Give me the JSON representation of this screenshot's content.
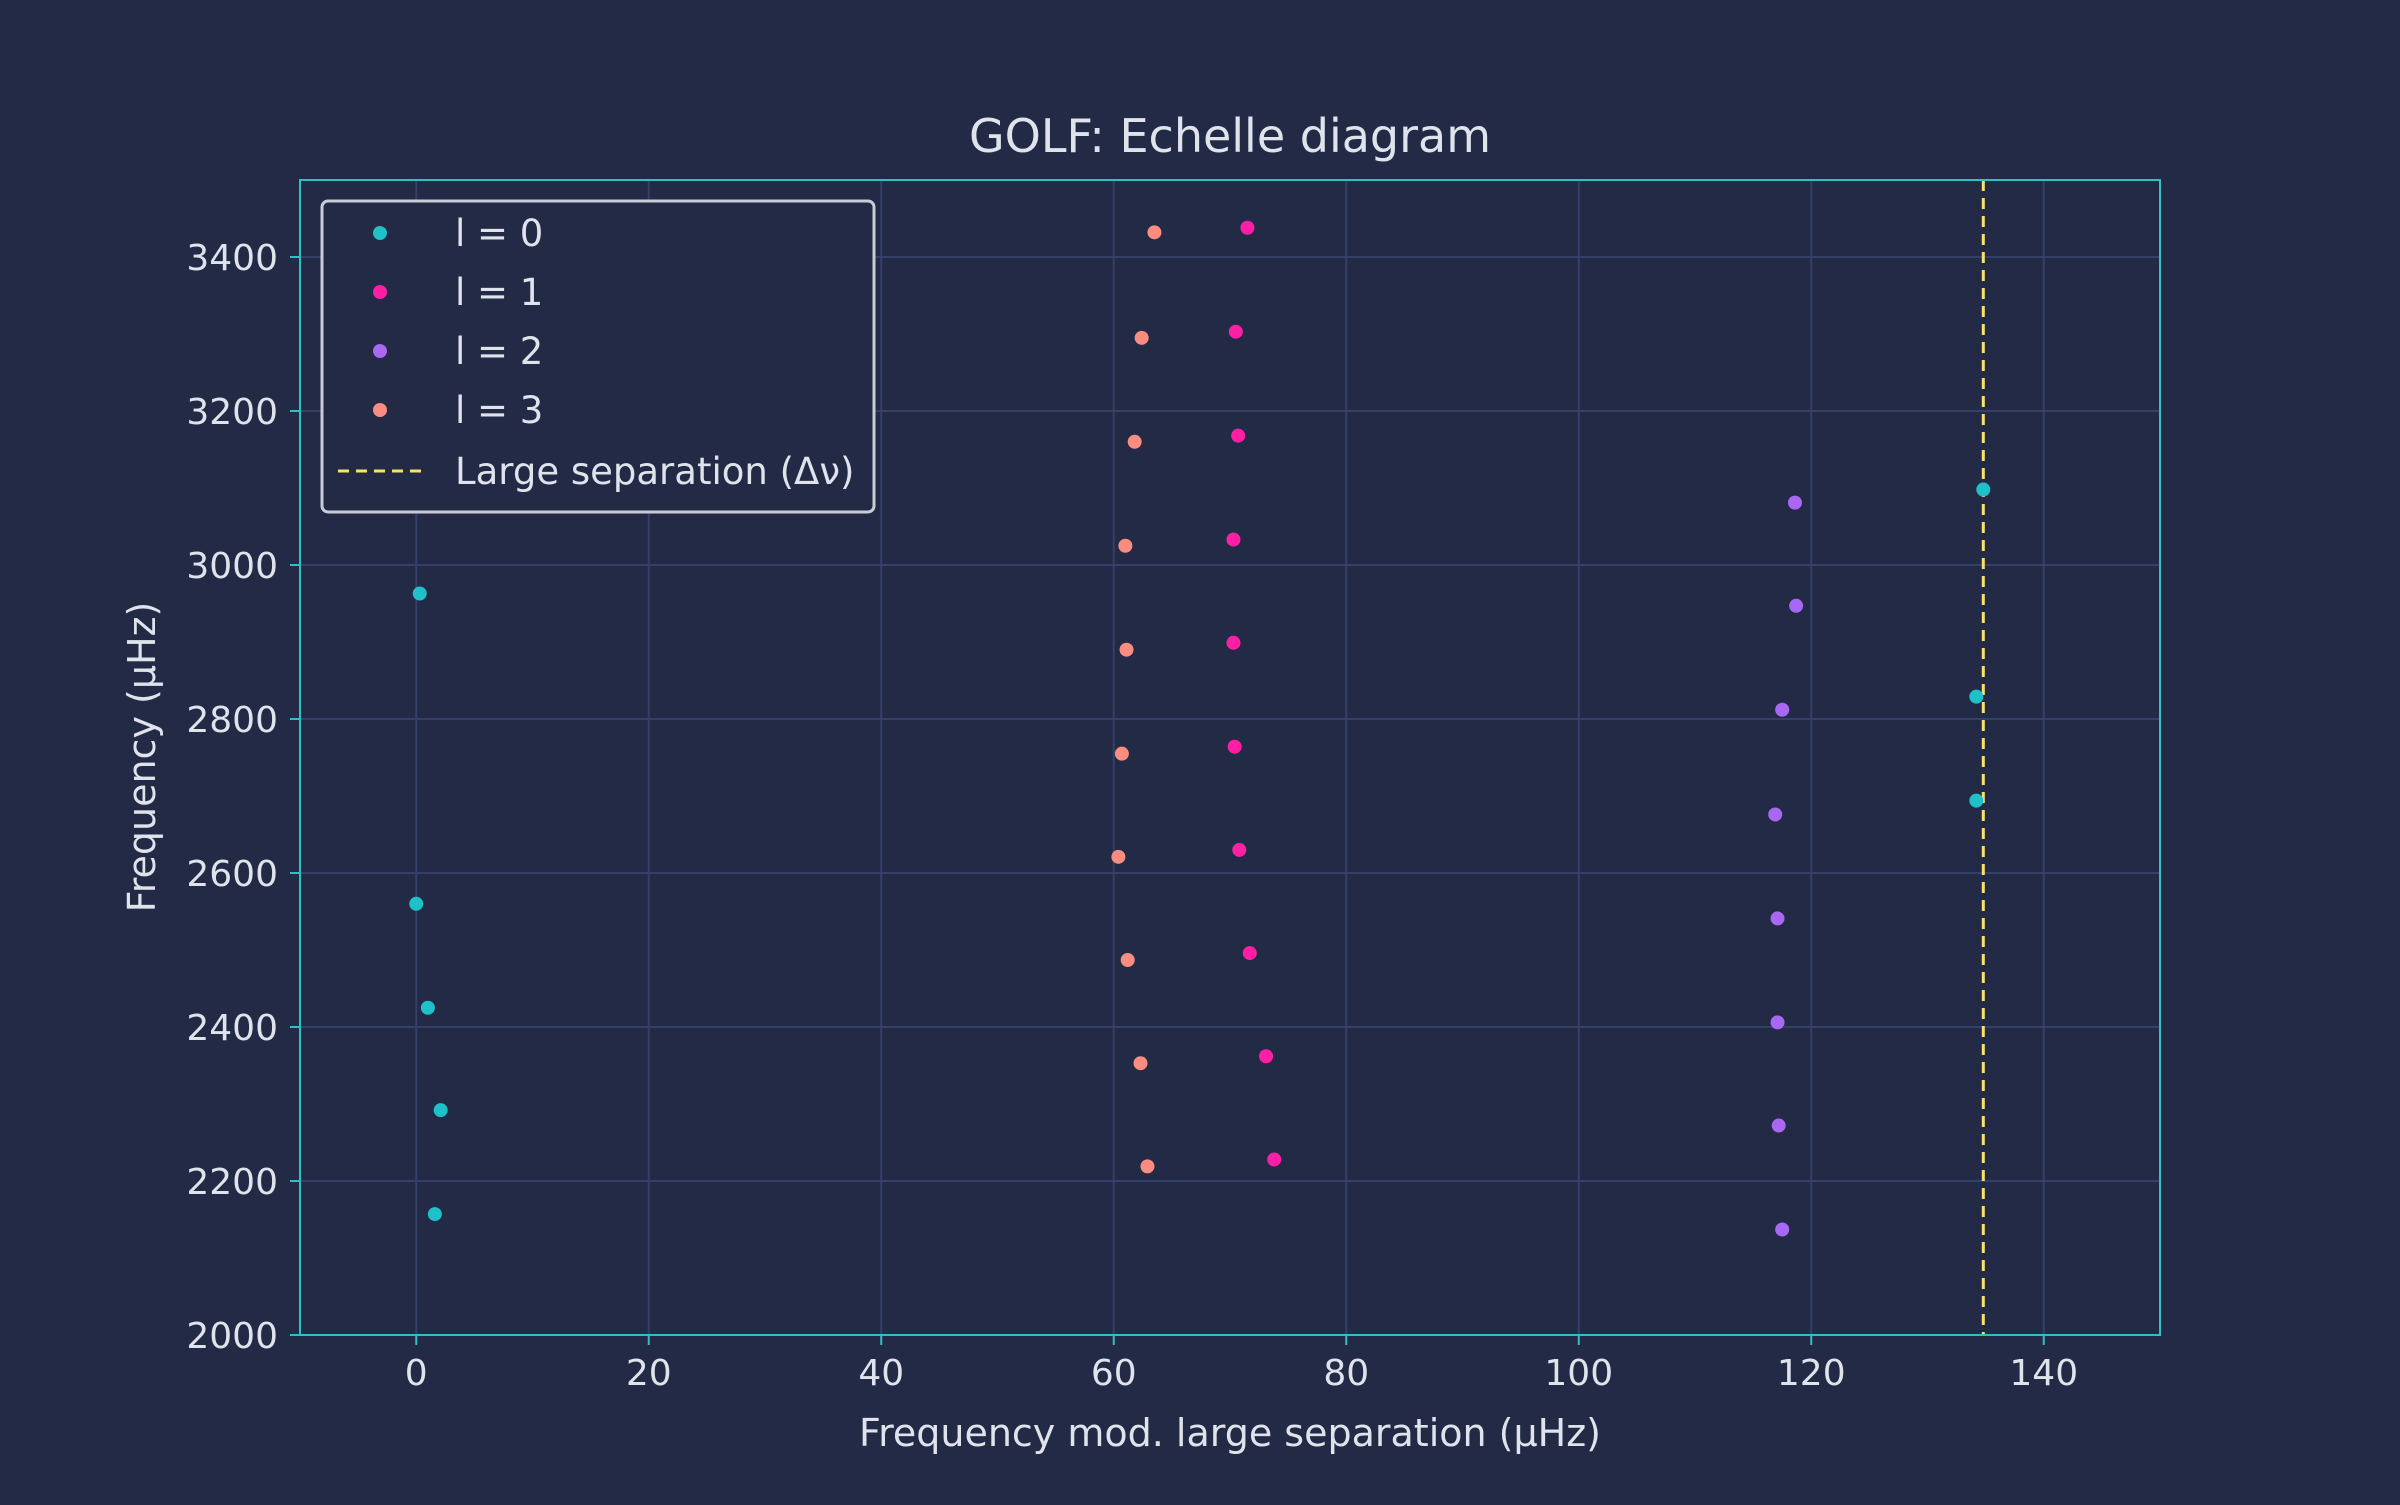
{
  "chart_data": {
    "type": "scatter",
    "title": "GOLF: Echelle diagram",
    "xlabel": "Frequency mod. large separation (μHz)",
    "ylabel": "Frequency (μHz)",
    "xlim": [
      -10,
      150
    ],
    "ylim": [
      2000,
      3500
    ],
    "xticks": [
      0,
      20,
      40,
      60,
      80,
      100,
      120,
      140
    ],
    "yticks": [
      2000,
      2200,
      2400,
      2600,
      2800,
      3000,
      3200,
      3400
    ],
    "grid": true,
    "legend_position": "top-left",
    "large_separation": 134.8,
    "series": [
      {
        "name": "l = 0",
        "color": "#1fc0c8",
        "points": [
          [
            1.6,
            2157
          ],
          [
            2.1,
            2292
          ],
          [
            1.0,
            2425
          ],
          [
            0.0,
            2560
          ],
          [
            134.2,
            2694
          ],
          [
            134.2,
            2829
          ],
          [
            0.3,
            2963
          ],
          [
            134.8,
            3098
          ]
        ]
      },
      {
        "name": "l = 1",
        "color": "#ff1fa4",
        "points": [
          [
            73.8,
            2228
          ],
          [
            73.1,
            2362
          ],
          [
            71.7,
            2496
          ],
          [
            70.8,
            2630
          ],
          [
            70.4,
            2764
          ],
          [
            70.3,
            2899
          ],
          [
            70.3,
            3033
          ],
          [
            70.7,
            3168
          ],
          [
            70.5,
            3303
          ],
          [
            71.5,
            3438
          ]
        ]
      },
      {
        "name": "l = 2",
        "color": "#a868f4",
        "points": [
          [
            117.5,
            2137
          ],
          [
            117.2,
            2272
          ],
          [
            117.1,
            2406
          ],
          [
            117.1,
            2541
          ],
          [
            116.9,
            2676
          ],
          [
            117.5,
            2812
          ],
          [
            118.7,
            2947
          ],
          [
            118.6,
            3081
          ]
        ]
      },
      {
        "name": "l = 3",
        "color": "#fa8c80",
        "points": [
          [
            62.9,
            2219
          ],
          [
            62.3,
            2353
          ],
          [
            61.2,
            2487
          ],
          [
            60.4,
            2621
          ],
          [
            60.7,
            2755
          ],
          [
            61.1,
            2890
          ],
          [
            61.0,
            3025
          ],
          [
            61.8,
            3160
          ],
          [
            62.4,
            3295
          ],
          [
            63.5,
            3432
          ]
        ]
      }
    ],
    "reference_line": {
      "name": "Large separation (Δν)",
      "color": "#f8e26a",
      "style": "dashed"
    }
  }
}
